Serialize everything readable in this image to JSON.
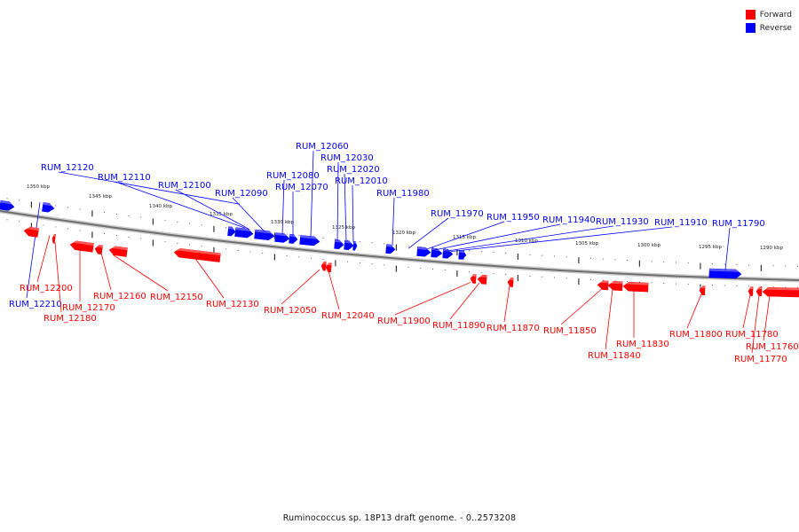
{
  "legend": {
    "forward": {
      "label": "Forward",
      "color": "#ff0000"
    },
    "reverse": {
      "label": "Reverse",
      "color": "#0000ff"
    }
  },
  "caption": "Ruminococcus sp. 18P13 draft genome. - 0..2573208",
  "ticks": [
    "1350 kbp",
    "1345 kbp",
    "1340 kbp",
    "1335 kbp",
    "1330 kbp",
    "1325 kbp",
    "1320 kbp",
    "1315 kbp",
    "1310 kbp",
    "1305 kbp",
    "1300 kbp",
    "1295 kbp",
    "1290 kbp"
  ],
  "genes": [
    {
      "id": "RUM_12210",
      "strand": "reverse"
    },
    {
      "id": "RUM_12200",
      "strand": "forward"
    },
    {
      "id": "RUM_12180",
      "strand": "forward"
    },
    {
      "id": "RUM_12170",
      "strand": "forward"
    },
    {
      "id": "RUM_12160",
      "strand": "forward"
    },
    {
      "id": "RUM_12150",
      "strand": "forward"
    },
    {
      "id": "RUM_12130",
      "strand": "forward"
    },
    {
      "id": "RUM_12120",
      "strand": "reverse"
    },
    {
      "id": "RUM_12110",
      "strand": "reverse"
    },
    {
      "id": "RUM_12100",
      "strand": "reverse"
    },
    {
      "id": "RUM_12090",
      "strand": "reverse"
    },
    {
      "id": "RUM_12080",
      "strand": "reverse"
    },
    {
      "id": "RUM_12070",
      "strand": "reverse"
    },
    {
      "id": "RUM_12060",
      "strand": "reverse"
    },
    {
      "id": "RUM_12050",
      "strand": "forward"
    },
    {
      "id": "RUM_12040",
      "strand": "forward"
    },
    {
      "id": "RUM_12030",
      "strand": "reverse"
    },
    {
      "id": "RUM_12020",
      "strand": "reverse"
    },
    {
      "id": "RUM_12010",
      "strand": "reverse"
    },
    {
      "id": "RUM_11980",
      "strand": "reverse"
    },
    {
      "id": "RUM_11970",
      "strand": "reverse"
    },
    {
      "id": "RUM_11950",
      "strand": "reverse"
    },
    {
      "id": "RUM_11940",
      "strand": "reverse"
    },
    {
      "id": "RUM_11930",
      "strand": "reverse"
    },
    {
      "id": "RUM_11910",
      "strand": "reverse"
    },
    {
      "id": "RUM_11900",
      "strand": "forward"
    },
    {
      "id": "RUM_11890",
      "strand": "forward"
    },
    {
      "id": "RUM_11870",
      "strand": "forward"
    },
    {
      "id": "RUM_11850",
      "strand": "forward"
    },
    {
      "id": "RUM_11840",
      "strand": "forward"
    },
    {
      "id": "RUM_11830",
      "strand": "forward"
    },
    {
      "id": "RUM_11800",
      "strand": "forward"
    },
    {
      "id": "RUM_11790",
      "strand": "reverse"
    },
    {
      "id": "RUM_11780",
      "strand": "forward"
    },
    {
      "id": "RUM_11770",
      "strand": "forward"
    },
    {
      "id": "RUM_11760",
      "strand": "forward"
    }
  ]
}
